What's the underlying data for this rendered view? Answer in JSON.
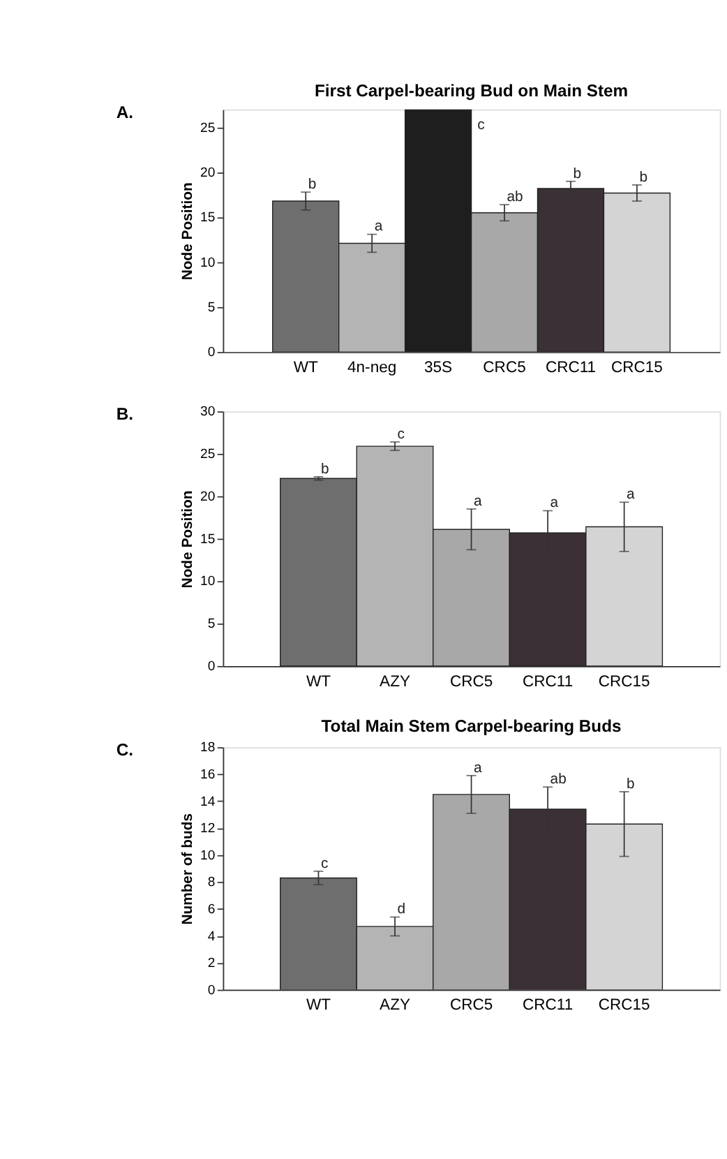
{
  "chart_data": [
    {
      "type": "bar",
      "title": "First Carpel-bearing Bud on Main Stem",
      "ylabel": "Node Position",
      "categories": [
        "WT",
        "4n-neg",
        "35S",
        "CRC5",
        "CRC11",
        "CRC15"
      ],
      "values": [
        16.8,
        12.1,
        27,
        15.5,
        18.2,
        17.7
      ],
      "errors": [
        1.0,
        1.0,
        null,
        0.9,
        0.8,
        0.9
      ],
      "colors": [
        "#6e6e6e",
        "#b4b4b4",
        "#1e1e1e",
        "#a8a8a8",
        "#3a3035",
        "#d4d4d4"
      ],
      "ylim": [
        0,
        27
      ],
      "yticks": [
        0,
        5,
        10,
        15,
        20,
        25
      ],
      "grid": false,
      "annotations": [
        "A.",
        "b",
        "a",
        "c",
        "ab",
        "b",
        "b"
      ]
    },
    {
      "type": "bar",
      "ylabel": "Node Position",
      "categories": [
        "WT",
        "AZY",
        "CRC5",
        "CRC11",
        "CRC15"
      ],
      "values": [
        22.1,
        25.9,
        16.1,
        15.7,
        16.4
      ],
      "errors": [
        0.2,
        0.5,
        2.4,
        2.6,
        2.9
      ],
      "colors": [
        "#6e6e6e",
        "#b4b4b4",
        "#a8a8a8",
        "#3a3035",
        "#d4d4d4"
      ],
      "ylim": [
        0,
        30
      ],
      "yticks": [
        0,
        5,
        10,
        15,
        20,
        25,
        30
      ],
      "grid": false,
      "annotations": [
        "B.",
        "b",
        "c",
        "a",
        "a",
        "a"
      ]
    },
    {
      "type": "bar",
      "title": "Total Main Stem Carpel-bearing Buds",
      "ylabel": "Number of buds",
      "categories": [
        "WT",
        "AZY",
        "CRC5",
        "CRC11",
        "CRC15"
      ],
      "values": [
        8.3,
        4.7,
        14.5,
        13.4,
        12.3
      ],
      "errors": [
        0.5,
        0.7,
        1.4,
        1.65,
        2.4
      ],
      "colors": [
        "#6e6e6e",
        "#b4b4b4",
        "#a8a8a8",
        "#3a3035",
        "#d4d4d4"
      ],
      "ylim": [
        0,
        18
      ],
      "yticks": [
        0,
        2,
        4,
        6,
        8,
        10,
        12,
        14,
        16,
        18
      ],
      "grid": false,
      "annotations": [
        "C.",
        "c",
        "d",
        "a",
        "ab",
        "b"
      ]
    }
  ]
}
